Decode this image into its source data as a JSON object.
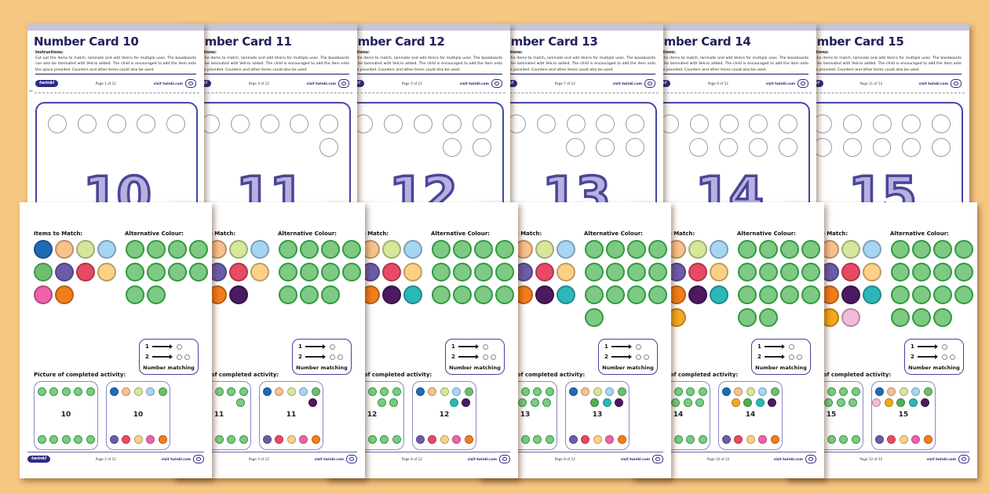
{
  "colors": {
    "background": "#f6c781",
    "sheet": "#ffffff",
    "header_band": "#c7c5d6",
    "title_text": "#21215c",
    "navy_rule": "#1a1a6e",
    "purple_rule": "#6a5fb0",
    "baseboard_border": "#4745a5",
    "number_fill": "#b5b2e0",
    "number_stroke": "#4b4596",
    "mini_border": "#8f86c9",
    "nm_border": "#4a3f9e",
    "brand_navy": "#2b2a83",
    "green_fill": "#7ec983",
    "green_border": "#2f9b3f"
  },
  "icons": {
    "scissors": "✂"
  },
  "labels": {
    "items_to_match": "Items to Match:",
    "alternative_colour": "Alternative Colour:",
    "completed_activity": "Picture of completed activity:"
  },
  "instructions": {
    "heading": "Instructions:",
    "text": "Cut out the items to match, laminate and add Velcro for multiple uses. The baseboards can also be laminated with Velcro added. The child is encouraged to add the item onto the space provided. Counters and other items could also be used."
  },
  "number_matching": {
    "label": "Number matching",
    "rows": [
      {
        "num": "1",
        "dots": 1
      },
      {
        "num": "2",
        "dots": 2
      }
    ]
  },
  "footer": {
    "brand": "twinkl",
    "visit": "visit twinkl.com"
  },
  "item_colors": [
    "#1f6cb4",
    "#f9c18c",
    "#d6e79b",
    "#a6d6f2",
    "#6cbf6e",
    "#6b5caa",
    "#e84a63",
    "#fcd184",
    "#ef61a9",
    "#f27e1b",
    "#4b1a60",
    "#2cb8b8",
    "#4db153",
    "#f6a81e",
    "#f2bbd9"
  ],
  "cards": [
    {
      "number": "10",
      "title": "Number Card 10",
      "items_count": 10,
      "page1_footer": "Page 1 of 12",
      "page2_footer": "Page 2 of 12"
    },
    {
      "number": "11",
      "title": "Number Card 11",
      "items_count": 11,
      "page1_footer": "Page 3 of 12",
      "page2_footer": "Page 4 of 12"
    },
    {
      "number": "12",
      "title": "Number Card 12",
      "items_count": 12,
      "page1_footer": "Page 5 of 12",
      "page2_footer": "Page 6 of 12"
    },
    {
      "number": "13",
      "title": "Number Card 13",
      "items_count": 13,
      "page1_footer": "Page 7 of 12",
      "page2_footer": "Page 8 of 12"
    },
    {
      "number": "14",
      "title": "Number Card 14",
      "items_count": 14,
      "page1_footer": "Page 9 of 12",
      "page2_footer": "Page 10 of 12"
    },
    {
      "number": "15",
      "title": "Number Card 15",
      "items_count": 15,
      "page1_footer": "Page 11 of 12",
      "page2_footer": "Page 12 of 12"
    }
  ]
}
